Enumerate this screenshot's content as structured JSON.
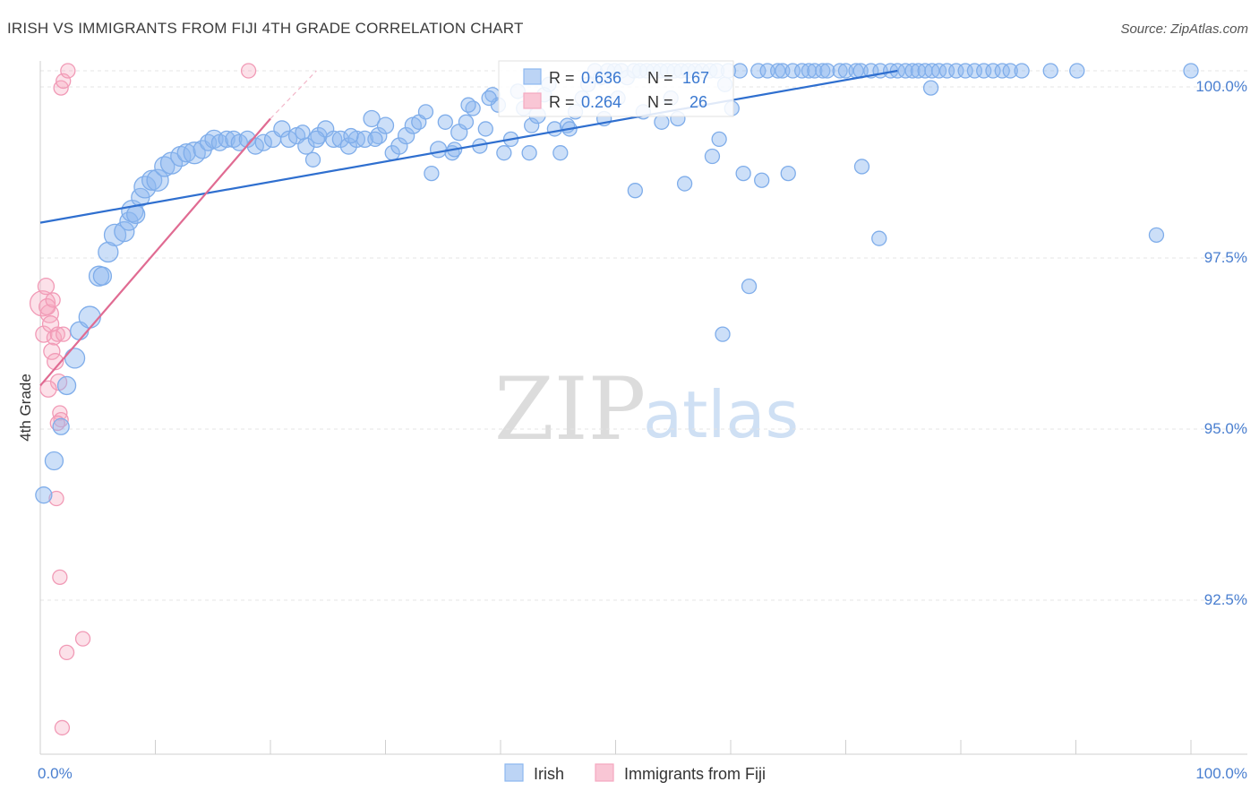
{
  "title": "IRISH VS IMMIGRANTS FROM FIJI 4TH GRADE CORRELATION CHART",
  "source": "Source: ZipAtlas.com",
  "watermark": {
    "zip": "ZIP",
    "atlas": "atlas"
  },
  "legend": {
    "irish": {
      "r_label": "R = ",
      "r": "0.636",
      "n_label": "N = ",
      "n": "167"
    },
    "fiji": {
      "r_label": "R = ",
      "r": "0.264",
      "n_label": "N = ",
      "n": "26"
    }
  },
  "bottom_legend": {
    "irish": "Irish",
    "fiji": "Immigrants from Fiji"
  },
  "colors": {
    "irish": "#8db8f0",
    "irish_line": "#2f6fcf",
    "fiji": "#f5a8c0",
    "fiji_line": "#e06b92",
    "axis_text": "#4a7fd0"
  },
  "chart_data": {
    "type": "scatter",
    "title": "IRISH VS IMMIGRANTS FROM FIJI 4TH GRADE CORRELATION CHART",
    "xlabel": "",
    "ylabel": "4th Grade",
    "xlim": [
      0,
      100
    ],
    "ylim": [
      90.0,
      100.4
    ],
    "x_tick_labels": [
      "0.0%",
      "100.0%"
    ],
    "y_ticks": [
      92.5,
      95.0,
      97.5,
      100.0
    ],
    "y_tick_labels": [
      "92.5%",
      "95.0%",
      "97.5%",
      "100.0%"
    ],
    "grid": true,
    "legend_position": "top-center",
    "series": [
      {
        "name": "Irish",
        "r": 0.636,
        "n": 167,
        "trend": {
          "x": [
            0,
            74.5
          ],
          "y": [
            97.78,
            100.0
          ]
        },
        "points": [
          [
            0.3,
            93.8,
            9
          ],
          [
            1.2,
            94.3,
            10
          ],
          [
            1.8,
            94.8,
            9
          ],
          [
            2.3,
            95.4,
            10
          ],
          [
            3.0,
            95.8,
            11
          ],
          [
            3.4,
            96.2,
            10
          ],
          [
            4.3,
            96.4,
            12
          ],
          [
            5.1,
            97.0,
            11
          ],
          [
            5.4,
            97.0,
            10
          ],
          [
            5.9,
            97.35,
            11
          ],
          [
            6.5,
            97.6,
            12
          ],
          [
            7.3,
            97.65,
            11
          ],
          [
            7.7,
            97.8,
            10
          ],
          [
            8.0,
            97.95,
            12
          ],
          [
            8.3,
            97.9,
            10
          ],
          [
            8.7,
            98.15,
            10
          ],
          [
            9.1,
            98.3,
            12
          ],
          [
            9.7,
            98.4,
            11
          ],
          [
            10.2,
            98.4,
            12
          ],
          [
            10.8,
            98.6,
            11
          ],
          [
            11.4,
            98.65,
            12
          ],
          [
            12.2,
            98.75,
            11
          ],
          [
            12.7,
            98.8,
            10
          ],
          [
            13.4,
            98.8,
            12
          ],
          [
            14.1,
            98.85,
            10
          ],
          [
            14.6,
            98.95,
            9
          ],
          [
            15.1,
            99.0,
            10
          ],
          [
            15.6,
            98.95,
            9
          ],
          [
            16.2,
            99.0,
            9
          ],
          [
            16.8,
            99.0,
            9
          ],
          [
            17.3,
            98.95,
            9
          ],
          [
            18.0,
            99.0,
            9
          ],
          [
            18.7,
            98.9,
            9
          ],
          [
            19.4,
            98.95,
            9
          ],
          [
            20.2,
            99.0,
            9
          ],
          [
            21.0,
            99.15,
            9
          ],
          [
            21.6,
            99.0,
            9
          ],
          [
            22.3,
            99.05,
            9
          ],
          [
            23.1,
            98.9,
            9
          ],
          [
            23.7,
            98.7,
            8
          ],
          [
            24.2,
            99.05,
            9
          ],
          [
            24.8,
            99.15,
            9
          ],
          [
            25.5,
            99.0,
            9
          ],
          [
            26.1,
            99.0,
            9
          ],
          [
            26.8,
            98.9,
            9
          ],
          [
            27.5,
            99.0,
            9
          ],
          [
            28.2,
            99.0,
            9
          ],
          [
            28.8,
            99.3,
            9
          ],
          [
            29.4,
            99.05,
            9
          ],
          [
            30.0,
            99.2,
            9
          ],
          [
            30.6,
            98.8,
            8
          ],
          [
            31.2,
            98.9,
            9
          ],
          [
            31.8,
            99.05,
            9
          ],
          [
            32.4,
            99.2,
            9
          ],
          [
            32.9,
            99.25,
            8
          ],
          [
            33.5,
            99.4,
            8
          ],
          [
            34.0,
            98.5,
            8
          ],
          [
            34.6,
            98.85,
            9
          ],
          [
            35.2,
            99.25,
            8
          ],
          [
            35.8,
            98.8,
            8
          ],
          [
            36.4,
            99.1,
            9
          ],
          [
            37.0,
            99.25,
            8
          ],
          [
            37.6,
            99.45,
            8
          ],
          [
            38.2,
            98.9,
            8
          ],
          [
            38.7,
            99.15,
            8
          ],
          [
            39.3,
            99.65,
            8
          ],
          [
            39.8,
            99.5,
            8
          ],
          [
            40.3,
            98.8,
            8
          ],
          [
            40.9,
            99.0,
            8
          ],
          [
            41.5,
            99.7,
            8
          ],
          [
            42.0,
            99.45,
            8
          ],
          [
            42.7,
            99.2,
            8
          ],
          [
            43.2,
            99.35,
            9
          ],
          [
            43.8,
            99.65,
            8
          ],
          [
            44.2,
            99.8,
            8
          ],
          [
            44.7,
            99.15,
            8
          ],
          [
            45.2,
            98.8,
            8
          ],
          [
            45.8,
            99.2,
            8
          ],
          [
            46.5,
            99.4,
            8
          ],
          [
            47.1,
            99.6,
            8
          ],
          [
            47.6,
            99.8,
            8
          ],
          [
            48.2,
            100.0,
            8
          ],
          [
            48.7,
            99.9,
            8
          ],
          [
            49.3,
            100.0,
            8
          ],
          [
            49.9,
            100.0,
            8
          ],
          [
            50.5,
            100.0,
            8
          ],
          [
            51.0,
            99.9,
            8
          ],
          [
            51.6,
            100.0,
            8
          ],
          [
            52.1,
            100.0,
            8
          ],
          [
            52.7,
            100.0,
            8
          ],
          [
            53.3,
            100.0,
            8
          ],
          [
            53.9,
            100.0,
            8
          ],
          [
            54.5,
            100.0,
            8
          ],
          [
            55.1,
            100.0,
            8
          ],
          [
            55.7,
            100.0,
            8
          ],
          [
            56.3,
            100.0,
            8
          ],
          [
            56.9,
            100.0,
            8
          ],
          [
            57.5,
            100.0,
            8
          ],
          [
            58.2,
            100.0,
            8
          ],
          [
            58.8,
            100.0,
            8
          ],
          [
            59.5,
            99.8,
            8
          ],
          [
            59.8,
            100.0,
            8
          ],
          [
            60.8,
            100.0,
            8
          ],
          [
            62.4,
            100.0,
            8
          ],
          [
            63.2,
            100.0,
            8
          ],
          [
            64.1,
            100.0,
            8
          ],
          [
            64.5,
            100.0,
            8
          ],
          [
            65.4,
            100.0,
            8
          ],
          [
            66.2,
            100.0,
            8
          ],
          [
            66.8,
            100.0,
            8
          ],
          [
            67.3,
            100.0,
            8
          ],
          [
            68.0,
            100.0,
            8
          ],
          [
            68.4,
            100.0,
            8
          ],
          [
            69.5,
            100.0,
            8
          ],
          [
            70.0,
            100.0,
            8
          ],
          [
            70.9,
            100.0,
            8
          ],
          [
            71.3,
            100.0,
            8
          ],
          [
            72.2,
            100.0,
            8
          ],
          [
            73.0,
            100.0,
            8
          ],
          [
            73.9,
            100.0,
            8
          ],
          [
            74.5,
            100.0,
            8
          ],
          [
            75.2,
            100.0,
            8
          ],
          [
            75.8,
            100.0,
            8
          ],
          [
            76.3,
            100.0,
            8
          ],
          [
            76.9,
            100.0,
            8
          ],
          [
            77.5,
            100.0,
            8
          ],
          [
            78.1,
            100.0,
            8
          ],
          [
            78.8,
            100.0,
            8
          ],
          [
            79.6,
            100.0,
            8
          ],
          [
            80.4,
            100.0,
            8
          ],
          [
            81.2,
            100.0,
            8
          ],
          [
            82.0,
            100.0,
            8
          ],
          [
            82.8,
            100.0,
            8
          ],
          [
            83.6,
            100.0,
            8
          ],
          [
            84.3,
            100.0,
            8
          ],
          [
            85.3,
            100.0,
            8
          ],
          [
            87.8,
            100.0,
            8
          ],
          [
            90.1,
            100.0,
            8
          ],
          [
            100.0,
            100.0,
            8
          ],
          [
            24.0,
            99.0,
            9
          ],
          [
            22.8,
            99.1,
            8
          ],
          [
            27.0,
            99.05,
            8
          ],
          [
            29.1,
            99.0,
            8
          ],
          [
            36.0,
            98.85,
            8
          ],
          [
            39.0,
            99.6,
            8
          ],
          [
            42.5,
            98.8,
            8
          ],
          [
            46.0,
            99.15,
            8
          ],
          [
            49.0,
            99.3,
            8
          ],
          [
            50.2,
            99.6,
            8
          ],
          [
            52.4,
            99.4,
            8
          ],
          [
            54.0,
            99.25,
            8
          ],
          [
            56.0,
            98.35,
            8
          ],
          [
            59.0,
            99.0,
            8
          ],
          [
            54.8,
            99.6,
            8
          ],
          [
            58.4,
            98.75,
            8
          ],
          [
            60.1,
            99.45,
            8
          ],
          [
            61.1,
            98.5,
            8
          ],
          [
            62.7,
            98.4,
            8
          ],
          [
            65.0,
            98.5,
            8
          ],
          [
            71.4,
            98.6,
            8
          ],
          [
            72.9,
            97.55,
            8
          ],
          [
            77.4,
            99.75,
            8
          ],
          [
            97.0,
            97.6,
            8
          ],
          [
            61.6,
            96.85,
            8
          ],
          [
            59.3,
            96.15,
            8
          ],
          [
            51.7,
            98.25,
            8
          ],
          [
            55.4,
            99.3,
            8
          ],
          [
            37.2,
            99.5,
            8
          ]
        ]
      },
      {
        "name": "Immigrants from Fiji",
        "r": 0.264,
        "n": 26,
        "trend": {
          "x": [
            0,
            20.0
          ],
          "y": [
            95.4,
            99.3
          ]
        },
        "trend_dashed": {
          "x": [
            20.0,
            24.0
          ],
          "y": [
            99.3,
            100.0
          ]
        },
        "points": [
          [
            0.2,
            96.6,
            14
          ],
          [
            0.5,
            96.85,
            9
          ],
          [
            0.8,
            96.45,
            10
          ],
          [
            0.3,
            96.15,
            9
          ],
          [
            0.9,
            96.3,
            9
          ],
          [
            1.2,
            96.1,
            8
          ],
          [
            1.5,
            96.15,
            8
          ],
          [
            1.0,
            95.9,
            9
          ],
          [
            1.3,
            95.75,
            9
          ],
          [
            1.6,
            95.45,
            9
          ],
          [
            0.7,
            95.35,
            9
          ],
          [
            1.7,
            95.0,
            8
          ],
          [
            1.8,
            94.9,
            8
          ],
          [
            1.5,
            94.85,
            8
          ],
          [
            1.4,
            93.75,
            8
          ],
          [
            1.7,
            92.6,
            8
          ],
          [
            2.3,
            91.5,
            8
          ],
          [
            3.7,
            91.7,
            8
          ],
          [
            1.9,
            90.4,
            8
          ],
          [
            1.8,
            99.75,
            8
          ],
          [
            2.0,
            99.85,
            8
          ],
          [
            2.4,
            100.0,
            8
          ],
          [
            18.1,
            100.0,
            8
          ],
          [
            0.6,
            96.55,
            9
          ],
          [
            1.1,
            96.65,
            8
          ],
          [
            2.0,
            96.15,
            8
          ]
        ]
      }
    ]
  }
}
